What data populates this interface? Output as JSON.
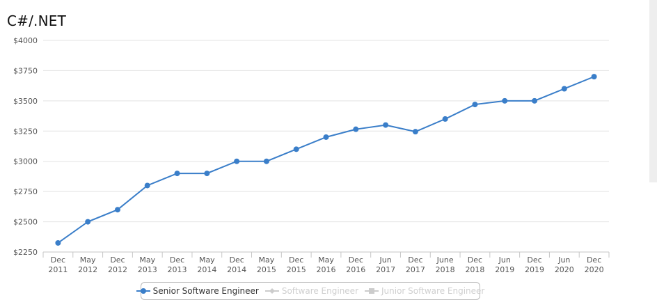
{
  "chart_data": {
    "type": "line",
    "title": "C#/.NET",
    "x_labels": [
      [
        "Dec",
        "2011"
      ],
      [
        "May",
        "2012"
      ],
      [
        "Dec",
        "2012"
      ],
      [
        "May",
        "2013"
      ],
      [
        "Dec",
        "2013"
      ],
      [
        "May",
        "2014"
      ],
      [
        "Dec",
        "2014"
      ],
      [
        "May",
        "2015"
      ],
      [
        "Dec",
        "2015"
      ],
      [
        "May",
        "2016"
      ],
      [
        "Dec",
        "2016"
      ],
      [
        "Jun",
        "2017"
      ],
      [
        "Dec",
        "2017"
      ],
      [
        "June",
        "2018"
      ],
      [
        "Dec",
        "2018"
      ],
      [
        "Jun",
        "2019"
      ],
      [
        "Dec",
        "2019"
      ],
      [
        "Jun",
        "2020"
      ],
      [
        "Dec",
        "2020"
      ]
    ],
    "y_ticks": [
      "$2250",
      "$2500",
      "$2750",
      "$3000",
      "$3250",
      "$3500",
      "$3750",
      "$4000"
    ],
    "ylim": [
      2250,
      4000
    ],
    "grid": true,
    "legend_position": "bottom-center",
    "series": [
      {
        "name": "Senior Software Engineer",
        "visible": true,
        "color": "#3a7ec9",
        "values": [
          2325,
          2500,
          2600,
          2800,
          2900,
          2900,
          3000,
          3000,
          3100,
          3200,
          3265,
          3300,
          3245,
          3350,
          3470,
          3500,
          3500,
          3600,
          3700
        ]
      },
      {
        "name": "Software Engineer",
        "visible": false,
        "color": "#cccccc",
        "values": []
      },
      {
        "name": "Junior Software Engineer",
        "visible": false,
        "color": "#cccccc",
        "values": []
      }
    ]
  }
}
